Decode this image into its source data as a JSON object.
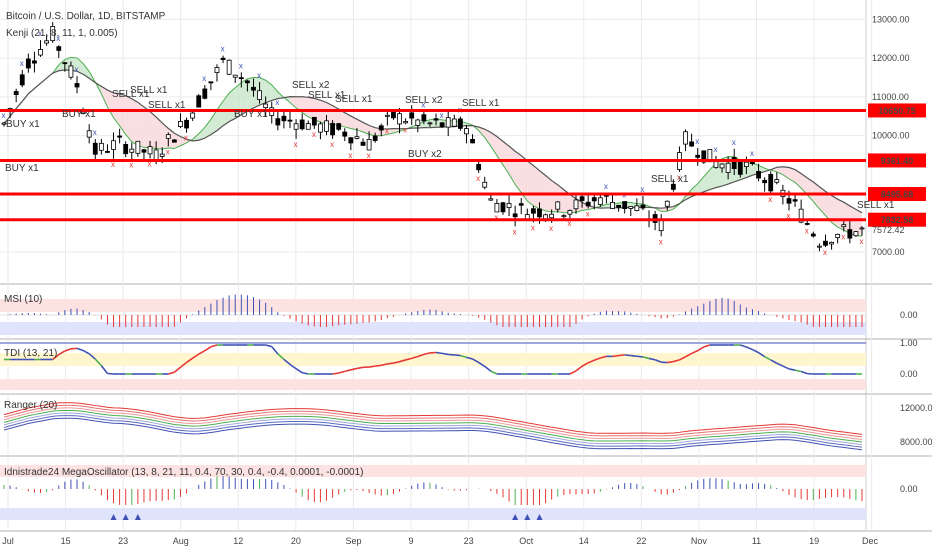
{
  "title": "Bitcoin / U.S. Dollar, 1D, BITSTAMP",
  "indicators": {
    "kenji": "Kenji (21, 8, 11, 1, 0.005)",
    "msi": "MSI (10)",
    "tdi": "TDI (13, 21)",
    "ranger": "Ranger (20)",
    "mega": "Idnistrade24 MegaOscillator (13, 8, 21, 11, 0.4, 70, 30, 0.4, -0.4, 0.0001, -0.0001)"
  },
  "colors": {
    "bull": "#000000",
    "bear": "#000000",
    "resistance": "#ff0000",
    "signal_sell": "#e53935",
    "signal_buy": "#3f51b5",
    "cloud_bull": "#c8e6c9",
    "cloud_bear": "#f8d7da",
    "grid": "#eaeaea"
  },
  "chart_data": {
    "type": "candlestick",
    "yaxis_ticks": [
      "13000.00",
      "12000.00",
      "11000.00",
      "10000.00",
      "7000.00"
    ],
    "ylim": [
      6200,
      13500
    ],
    "xaxis_ticks": [
      "Jul",
      "15",
      "23",
      "Aug",
      "12",
      "20",
      "Sep",
      "9",
      "23",
      "Oct",
      "14",
      "22",
      "Nov",
      "11",
      "19",
      "Dec"
    ],
    "levels": [
      {
        "value": "10650.75",
        "price": 10650.75
      },
      {
        "value": "9361.40",
        "price": 9361.4
      },
      {
        "value": "8495.68",
        "price": 8495.68
      },
      {
        "value": "7832.58",
        "price": 7832.58
      }
    ],
    "last_price": "7572.42",
    "signals": [
      {
        "text": "SELL x1",
        "type": "sell"
      },
      {
        "text": "SELL x1",
        "type": "sell"
      },
      {
        "text": "SELL x1",
        "type": "sell"
      },
      {
        "text": "SELL x2",
        "type": "sell"
      },
      {
        "text": "SELL x1",
        "type": "sell"
      },
      {
        "text": "SELL x2",
        "type": "sell"
      },
      {
        "text": "SELL x1",
        "type": "sell"
      },
      {
        "text": "SELL x1",
        "type": "sell"
      },
      {
        "text": "SELL x1",
        "type": "sell"
      },
      {
        "text": "SELL x1",
        "type": "sell"
      },
      {
        "text": "BUY x1",
        "type": "buy"
      },
      {
        "text": "BUY x1",
        "type": "buy"
      },
      {
        "text": "BUY x1",
        "type": "buy"
      },
      {
        "text": "BUY x1",
        "type": "buy"
      },
      {
        "text": "BUY x2",
        "type": "buy"
      }
    ],
    "msi": {
      "ticks": [
        "0.00"
      ]
    },
    "tdi": {
      "ticks": [
        "1.00",
        "0.00"
      ]
    },
    "ranger": {
      "ticks": [
        "12000.00",
        "8000.00"
      ]
    },
    "mega": {
      "ticks": [
        "0.00"
      ]
    }
  }
}
